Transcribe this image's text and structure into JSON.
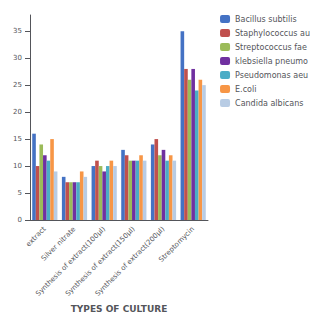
{
  "chart_data": {
    "type": "bar",
    "categories": [
      "extract",
      "Silver nitrate",
      "Synthesis of extract(100µl)",
      "Synthesis of extract(150µl)",
      "Synthesis of extract(200µl)",
      "Streptomycin"
    ],
    "series": [
      {
        "name": "Bacillus subtilis",
        "color": "#4472C4",
        "values": [
          16,
          8,
          10,
          13,
          14,
          35
        ]
      },
      {
        "name": "Staphylococcus au",
        "color": "#C0504D",
        "values": [
          10,
          7,
          11,
          12,
          15,
          28
        ]
      },
      {
        "name": "Streptococcus fae",
        "color": "#9BBB59",
        "values": [
          14,
          7,
          10,
          11,
          12,
          26
        ]
      },
      {
        "name": "klebsiella pneumo",
        "color": "#7030A0",
        "values": [
          12,
          7,
          9,
          11,
          13,
          28
        ]
      },
      {
        "name": "Pseudomonas aeu",
        "color": "#4BACC6",
        "values": [
          11,
          7,
          10,
          11,
          11,
          24
        ]
      },
      {
        "name": "E.coli",
        "color": "#F79646",
        "values": [
          15,
          9,
          11,
          12,
          12,
          26
        ]
      },
      {
        "name": "Candida albicans",
        "color": "#B8CCE4",
        "values": [
          9,
          8,
          10,
          11,
          11,
          25
        ]
      }
    ],
    "xlabel": "TYPES OF CULTURE",
    "ylim": [
      0,
      38
    ],
    "yticks": [
      0,
      5,
      10,
      15,
      20,
      25,
      30,
      35
    ],
    "grid": false,
    "legend": "right"
  }
}
